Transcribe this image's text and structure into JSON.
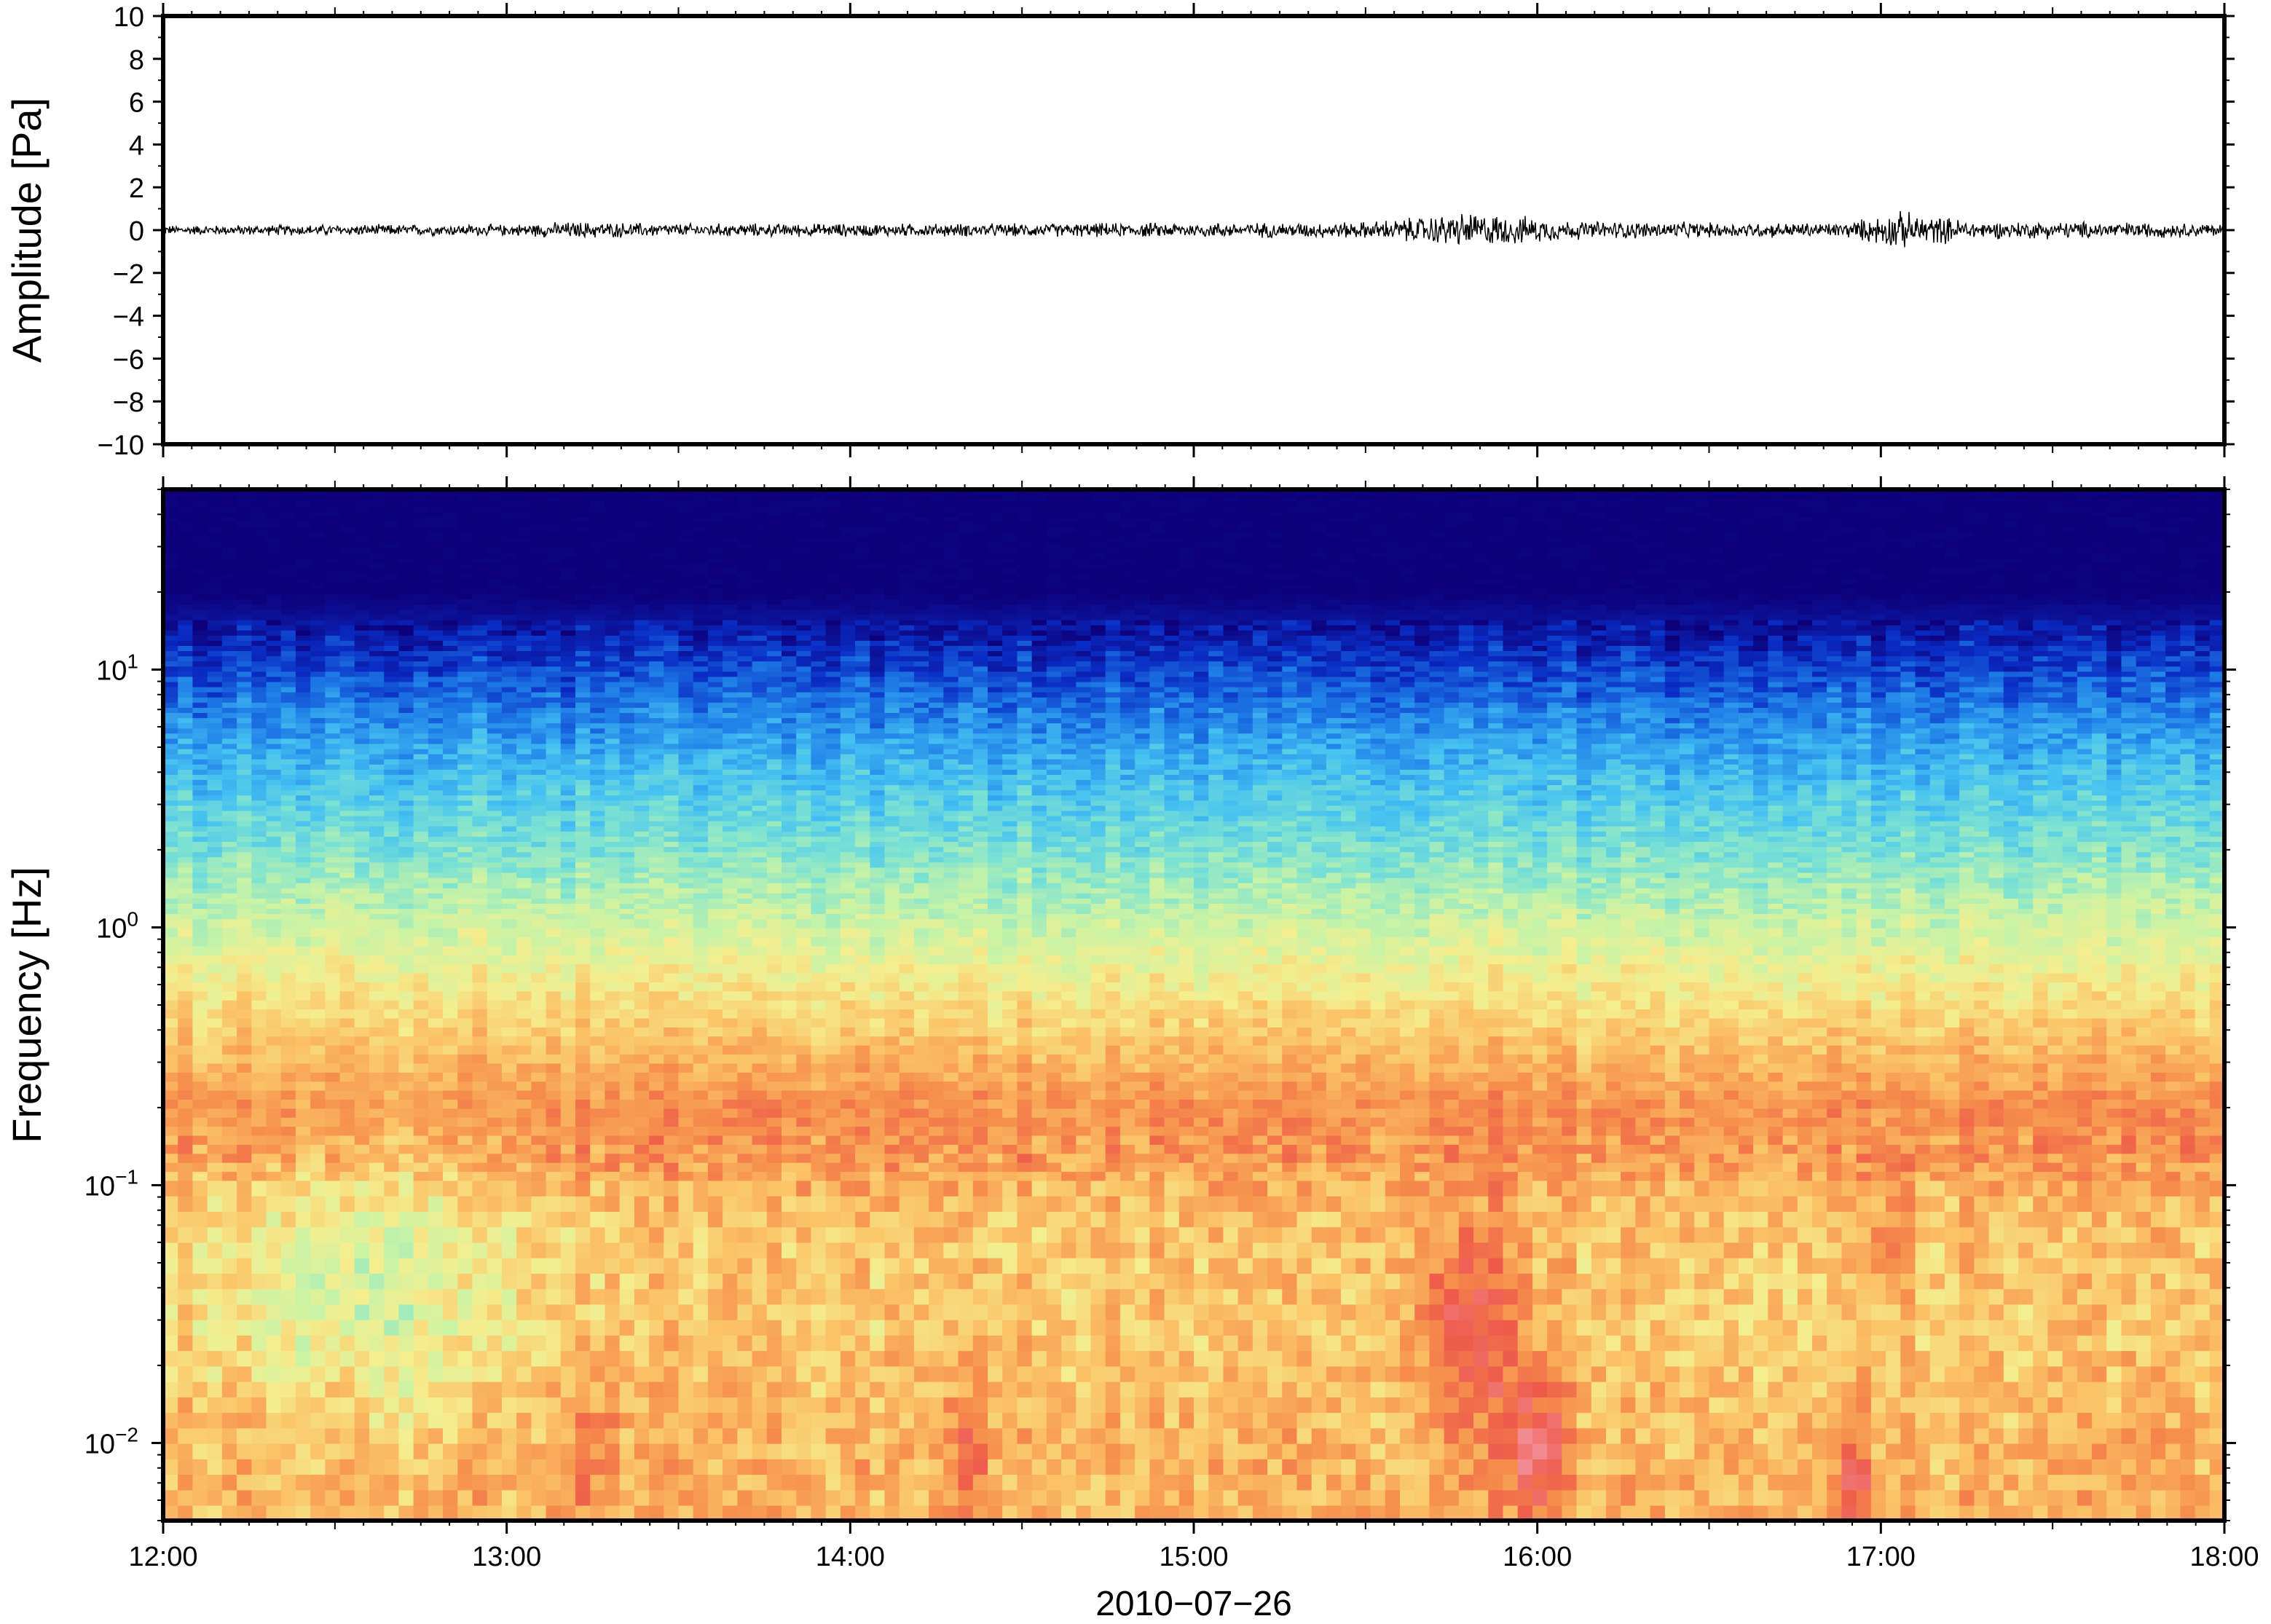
{
  "chart_data": [
    {
      "type": "line",
      "panel": "waveform",
      "ylabel": "Amplitude [Pa]",
      "ylim": [
        -10,
        10
      ],
      "yticks": [
        10,
        8,
        6,
        4,
        2,
        0,
        -2,
        -4,
        -6,
        -8,
        -10
      ],
      "ytick_labels": [
        "10",
        "8",
        "6",
        "4",
        "2",
        "0",
        "−2",
        "−4",
        "−6",
        "−8",
        "−10"
      ],
      "x_range": [
        "12:00",
        "18:00"
      ],
      "envelope": {
        "x_hours": [
          12.0,
          12.5,
          13.0,
          13.2,
          13.5,
          14.0,
          14.5,
          15.0,
          15.3,
          15.5,
          15.65,
          15.8,
          15.95,
          16.1,
          16.5,
          16.9,
          17.05,
          17.3,
          17.6,
          18.0
        ],
        "peak_pa": [
          0.25,
          0.3,
          0.3,
          0.45,
          0.35,
          0.35,
          0.35,
          0.4,
          0.4,
          0.45,
          0.7,
          0.95,
          0.75,
          0.5,
          0.4,
          0.4,
          1.0,
          0.45,
          0.45,
          0.35
        ]
      },
      "grid": false
    },
    {
      "type": "heatmap",
      "panel": "spectrogram",
      "ylabel": "Frequency [Hz]",
      "yscale": "log",
      "ylim": [
        0.005,
        50
      ],
      "yticks": [
        10,
        1,
        0.1,
        0.01
      ],
      "ytick_labels": [
        {
          "base": "10",
          "exp": "1"
        },
        {
          "base": "10",
          "exp": "0"
        },
        {
          "base": "10",
          "exp": "−1"
        },
        {
          "base": "10",
          "exp": "−2"
        }
      ],
      "xlabel": "2010−07−26",
      "x_range": [
        "12:00",
        "18:00"
      ],
      "xticks": [
        "12:00",
        "13:00",
        "14:00",
        "15:00",
        "16:00",
        "17:00",
        "18:00"
      ],
      "colormap": [
        "#0d007a",
        "#0a2cc4",
        "#1f7fe8",
        "#45c1f2",
        "#7ee3d1",
        "#c8f3a6",
        "#f4ee8f",
        "#fbc266",
        "#f68e4c",
        "#ee5a4a",
        "#f28a92"
      ],
      "hotspots": [
        {
          "time": "15:40–16:00",
          "freq_hz": [
            0.015,
            0.06
          ],
          "level": "high"
        },
        {
          "time": "15:55–16:05",
          "freq_hz": [
            0.006,
            0.02
          ],
          "level": "highest"
        },
        {
          "time": "16:52–16:57",
          "freq_hz": [
            0.005,
            0.009
          ],
          "level": "high"
        },
        {
          "time": "17:00–17:05",
          "freq_hz": [
            0.04,
            0.08
          ],
          "level": "high"
        }
      ],
      "bands": [
        {
          "freq_hz": [
            15,
            50
          ],
          "level": "lowest"
        },
        {
          "freq_hz": [
            3,
            10
          ],
          "level": "low"
        },
        {
          "freq_hz": [
            0.5,
            2
          ],
          "level": "mid"
        },
        {
          "freq_hz": [
            0.12,
            0.35
          ],
          "level": "high"
        }
      ],
      "grid": false
    }
  ]
}
